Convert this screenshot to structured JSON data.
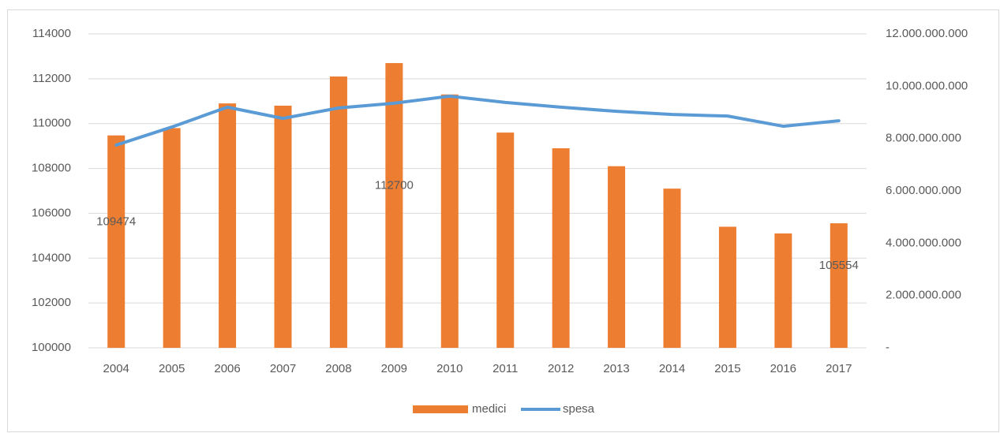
{
  "chart_data": {
    "type": "bar-line",
    "categories": [
      "2004",
      "2005",
      "2006",
      "2007",
      "2008",
      "2009",
      "2010",
      "2011",
      "2012",
      "2013",
      "2014",
      "2015",
      "2016",
      "2017"
    ],
    "series": [
      {
        "name": "medici",
        "type": "bar",
        "color": "#ED7D31",
        "values": [
          109474,
          109800,
          110900,
          110800,
          112100,
          112700,
          111300,
          109600,
          108900,
          108100,
          107100,
          105400,
          105100,
          105554
        ],
        "value_labels": [
          "109474",
          null,
          null,
          null,
          null,
          "112700",
          null,
          null,
          null,
          null,
          null,
          null,
          null,
          "105554"
        ]
      },
      {
        "name": "spesa",
        "type": "line",
        "axis": "y2",
        "color": "#5B9BD5",
        "values": [
          7750000000,
          8440000000,
          9200000000,
          8770000000,
          9170000000,
          9350000000,
          9620000000,
          9380000000,
          9200000000,
          9040000000,
          8920000000,
          8860000000,
          8470000000,
          8680000000
        ]
      }
    ],
    "ylim": [
      100000,
      114000
    ],
    "yticks": [
      100000,
      102000,
      104000,
      106000,
      108000,
      110000,
      112000,
      114000
    ],
    "y2lim": [
      0,
      12000000000
    ],
    "y2ticks": [
      {
        "value": 0,
        "label": "-"
      },
      {
        "value": 2000000000,
        "label": "2.000.000.000"
      },
      {
        "value": 4000000000,
        "label": "4.000.000.000"
      },
      {
        "value": 6000000000,
        "label": "6.000.000.000"
      },
      {
        "value": 8000000000,
        "label": "8.000.000.000"
      },
      {
        "value": 10000000000,
        "label": "10.000.000.000"
      },
      {
        "value": 12000000000,
        "label": "12.000.000.000"
      }
    ],
    "grid": true,
    "legend": "bottom"
  }
}
